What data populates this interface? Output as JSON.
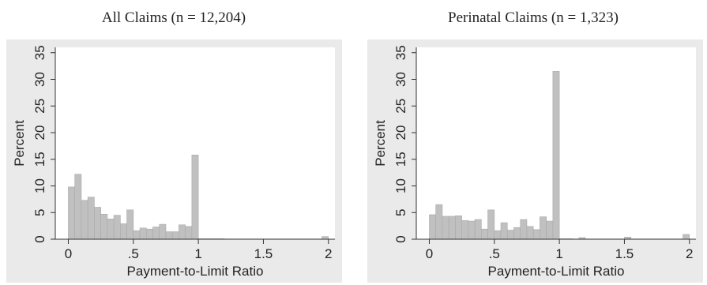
{
  "chart_data": [
    {
      "type": "bar",
      "title": "All Claims (n = 12,204)",
      "xlabel": "Payment-to-Limit Ratio",
      "ylabel": "Percent",
      "xlim": [
        -0.1,
        2.05
      ],
      "ylim": [
        0,
        36
      ],
      "xticks": [
        0,
        0.5,
        1,
        1.5,
        2
      ],
      "xtick_labels": [
        "0",
        ".5",
        "1",
        "1.5",
        "2"
      ],
      "yticks": [
        0,
        5,
        10,
        15,
        20,
        25,
        30,
        35
      ],
      "ytick_labels": [
        "0",
        "5",
        "10",
        "15",
        "20",
        "25",
        "30",
        "35"
      ],
      "bin_width": 0.05,
      "bin_start": 0,
      "values": [
        9.8,
        12.2,
        7.3,
        7.9,
        6.0,
        4.7,
        3.8,
        4.5,
        2.9,
        5.5,
        1.6,
        2.1,
        1.9,
        2.3,
        2.8,
        1.4,
        1.4,
        2.7,
        2.4,
        15.8,
        0.1,
        0.1,
        0.1,
        0.1,
        0.05,
        0.05,
        0.05,
        0.05,
        0.05,
        0.05,
        0.05,
        0.05,
        0.05,
        0.05,
        0.05,
        0.05,
        0.05,
        0.05,
        0.05,
        0.5
      ],
      "grid": false,
      "legend": "none"
    },
    {
      "type": "bar",
      "title": "Perinatal Claims (n = 1,323)",
      "xlabel": "Payment-to-Limit Ratio",
      "ylabel": "Percent",
      "xlim": [
        -0.1,
        2.05
      ],
      "ylim": [
        0,
        36
      ],
      "xticks": [
        0,
        0.5,
        1,
        1.5,
        2
      ],
      "xtick_labels": [
        "0",
        ".5",
        "1",
        "1.5",
        "2"
      ],
      "yticks": [
        0,
        5,
        10,
        15,
        20,
        25,
        30,
        35
      ],
      "ytick_labels": [
        "0",
        "5",
        "10",
        "15",
        "20",
        "25",
        "30",
        "35"
      ],
      "bin_width": 0.05,
      "bin_start": 0,
      "values": [
        4.6,
        6.5,
        4.3,
        4.3,
        4.4,
        3.5,
        3.4,
        3.7,
        1.9,
        5.5,
        1.6,
        3.1,
        1.7,
        2.2,
        3.7,
        2.4,
        1.8,
        4.2,
        3.4,
        31.5,
        0.1,
        0.1,
        0.05,
        0.3,
        0.05,
        0.05,
        0.05,
        0.05,
        0.05,
        0.05,
        0.4,
        0.05,
        0.05,
        0.05,
        0.05,
        0.05,
        0.05,
        0.05,
        0.05,
        0.9
      ],
      "grid": false,
      "legend": "none"
    }
  ],
  "colors": {
    "plot_bg": "#ffffff",
    "frame_bg": "#eaeaea",
    "bar_fill": "#c0c0c0",
    "bar_stroke": "#a9a9a9",
    "axis": "#333333"
  }
}
